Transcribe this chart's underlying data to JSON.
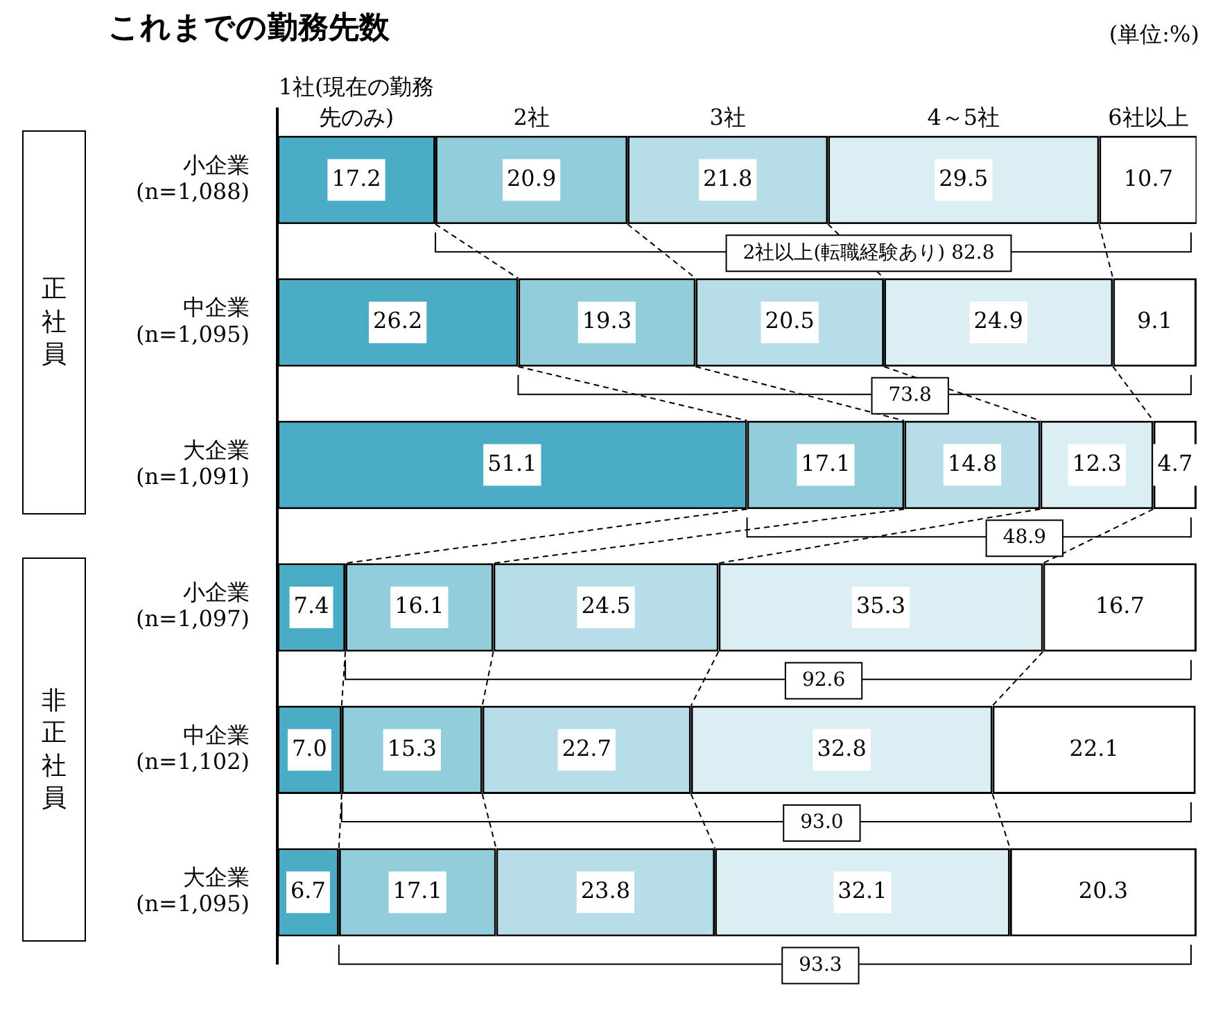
{
  "chart_data": {
    "type": "bar",
    "orientation": "horizontal",
    "stacked": true,
    "title": "これまでの勤務先数",
    "categories": [
      "小企業\n(n=1,088)",
      "中企業\n(n=1,095)",
      "大企業\n(n=1,091)",
      "小企業\n(n=1,097)",
      "中企業\n(n=1,102)",
      "大企業\n(n=1,095)"
    ],
    "series": [
      {
        "name": "1社(現在の勤務先のみ)",
        "color": "#4bacc6",
        "values": [
          17.2,
          26.2,
          51.1,
          7.4,
          7.0,
          6.7
        ],
        "value_labels": [
          "17.2",
          "26.2",
          "51.1",
          "7.4",
          "7.0",
          "6.7"
        ]
      },
      {
        "name": "2社",
        "color": "#92cddc",
        "values": [
          20.9,
          19.3,
          17.1,
          16.1,
          15.3,
          17.1
        ]
      },
      {
        "name": "3社",
        "color": "#b7dde8",
        "values": [
          21.8,
          20.5,
          14.8,
          24.5,
          22.7,
          23.8
        ]
      },
      {
        "name": "4～5社",
        "color": "#daeef3",
        "values": [
          29.5,
          24.9,
          12.3,
          35.3,
          32.8,
          32.1
        ]
      },
      {
        "name": "6社以上",
        "color": "#ffffff",
        "values": [
          10.7,
          9.1,
          4.7,
          16.7,
          22.1,
          20.3
        ]
      }
    ],
    "xlim": [
      0,
      100
    ],
    "data_labels": true,
    "legend": false,
    "grid": false,
    "annotations": [
      "(単位:%)",
      "正社員",
      "非正社員",
      "2社以上(転職経験あり) 82.8",
      "73.8",
      "48.9",
      "92.6",
      "93.0",
      "93.3"
    ]
  }
}
